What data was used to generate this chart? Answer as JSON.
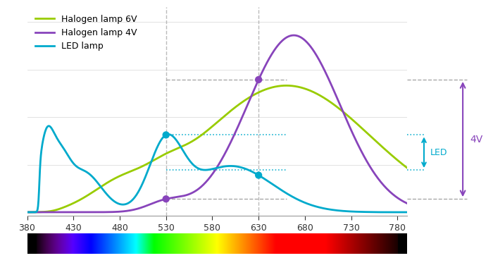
{
  "xlim": [
    380,
    790
  ],
  "xticks": [
    380,
    430,
    480,
    530,
    580,
    630,
    680,
    730,
    780
  ],
  "bg_color": "#ffffff",
  "halogen6_color": "#99cc00",
  "halogen4_color": "#8844bb",
  "led_color": "#00aacc",
  "legend_labels": [
    "Halogen lamp 6V",
    "Halogen lamp 4V",
    "LED lamp"
  ],
  "dot_purple_color": "#8844bb",
  "dot_cyan_color": "#00aacc",
  "gray_dash_color": "#999999",
  "cyan_dot_color": "#00aacc",
  "arrow_4v_color": "#8844bb",
  "arrow_led_color": "#00aacc",
  "label_4v": "4V",
  "label_led": "LED",
  "vline_color": "#aaaaaa",
  "hline_color": "#aaaaaa"
}
